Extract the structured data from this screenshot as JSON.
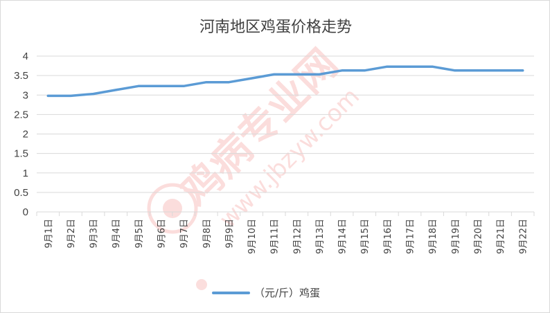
{
  "colors": {
    "series": "#5b9bd5",
    "grid": "#d9d9d9",
    "text": "#404040",
    "watermark": "#e8302a"
  },
  "watermark": {
    "brand": "鸡病专业网",
    "url": "www.jbzyw.com"
  },
  "chart_data": {
    "type": "line",
    "title": "河南地区鸡蛋价格走势",
    "xlabel": "",
    "ylabel": "",
    "ylim": [
      0,
      4
    ],
    "yticks": [
      "0",
      "0.5",
      "1",
      "1.5",
      "2",
      "2.5",
      "3",
      "3.5",
      "4"
    ],
    "grid": true,
    "legend_position": "bottom",
    "categories": [
      "9月1日",
      "9月2日",
      "9月3日",
      "9月4日",
      "9月5日",
      "9月6日",
      "9月7日",
      "9月8日",
      "9月9日",
      "9月10日",
      "9月11日",
      "9月12日",
      "9月13日",
      "9月14日",
      "9月15日",
      "9月16日",
      "9月17日",
      "9月18日",
      "9月19日",
      "9月20日",
      "9月21日",
      "9月22日"
    ],
    "series": [
      {
        "name": "（元/斤）鸡蛋",
        "values": [
          2.98,
          2.98,
          3.03,
          3.13,
          3.23,
          3.23,
          3.23,
          3.33,
          3.33,
          3.43,
          3.53,
          3.53,
          3.53,
          3.63,
          3.63,
          3.73,
          3.73,
          3.73,
          3.63,
          3.63,
          3.63,
          3.63
        ]
      }
    ]
  }
}
